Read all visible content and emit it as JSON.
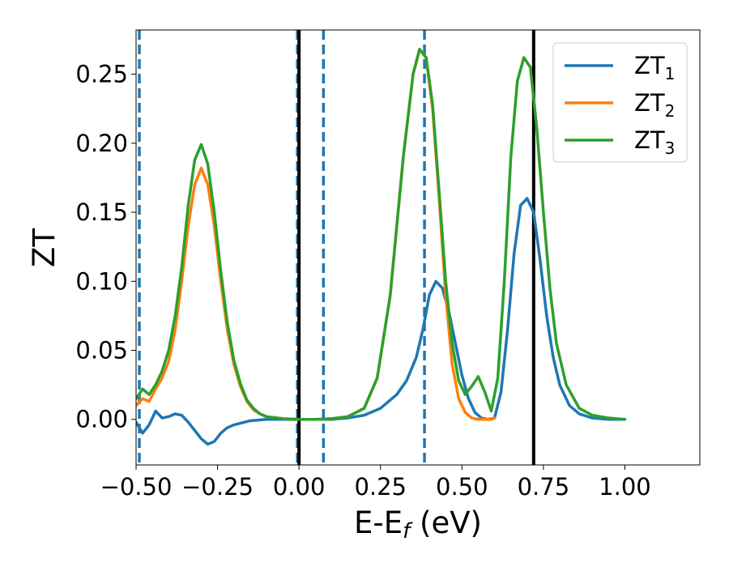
{
  "chart_data": {
    "type": "line",
    "xlabel": "E-E_f (eV)",
    "ylabel": "ZT",
    "xlim": [
      -0.5,
      1.23
    ],
    "ylim": [
      -0.033,
      0.282
    ],
    "xticks": [
      "−0.50",
      "−0.25",
      "0.00",
      "0.25",
      "0.50",
      "0.75",
      "1.00"
    ],
    "xtick_values": [
      -0.5,
      -0.25,
      0.0,
      0.25,
      0.5,
      0.75,
      1.0
    ],
    "yticks": [
      "0.00",
      "0.05",
      "0.10",
      "0.15",
      "0.20",
      "0.25"
    ],
    "ytick_values": [
      0.0,
      0.05,
      0.1,
      0.15,
      0.2,
      0.25
    ],
    "grid": false,
    "legend_position": "top-right",
    "series": [
      {
        "name": "ZT_1",
        "label_main": "ZT",
        "label_sub": "1",
        "color": "#1f77b4",
        "x": [
          -0.5,
          -0.48,
          -0.46,
          -0.44,
          -0.42,
          -0.4,
          -0.38,
          -0.36,
          -0.34,
          -0.32,
          -0.3,
          -0.28,
          -0.26,
          -0.24,
          -0.22,
          -0.2,
          -0.15,
          -0.1,
          -0.05,
          0.0,
          0.05,
          0.1,
          0.15,
          0.2,
          0.25,
          0.3,
          0.33,
          0.36,
          0.38,
          0.4,
          0.42,
          0.44,
          0.46,
          0.48,
          0.5,
          0.52,
          0.54,
          0.56,
          0.58,
          0.6,
          0.62,
          0.64,
          0.66,
          0.68,
          0.7,
          0.72,
          0.74,
          0.76,
          0.78,
          0.8,
          0.83,
          0.86,
          0.9,
          0.95,
          1.0
        ],
        "y": [
          -0.002,
          -0.01,
          -0.004,
          0.006,
          0.001,
          0.002,
          0.004,
          0.003,
          -0.002,
          -0.008,
          -0.014,
          -0.018,
          -0.016,
          -0.01,
          -0.006,
          -0.004,
          -0.001,
          0.0,
          0.0,
          0.0,
          0.0,
          0.0,
          0.001,
          0.003,
          0.008,
          0.018,
          0.028,
          0.045,
          0.065,
          0.09,
          0.1,
          0.095,
          0.078,
          0.055,
          0.032,
          0.015,
          0.005,
          0.001,
          0.0,
          0.001,
          0.02,
          0.065,
          0.12,
          0.155,
          0.16,
          0.15,
          0.115,
          0.075,
          0.045,
          0.025,
          0.01,
          0.004,
          0.001,
          0.0,
          0.0
        ]
      },
      {
        "name": "ZT_2",
        "label_main": "ZT",
        "label_sub": "2",
        "color": "#ff7f0e",
        "x": [
          -0.5,
          -0.48,
          -0.46,
          -0.44,
          -0.42,
          -0.4,
          -0.38,
          -0.36,
          -0.34,
          -0.32,
          -0.3,
          -0.28,
          -0.26,
          -0.24,
          -0.22,
          -0.2,
          -0.18,
          -0.16,
          -0.14,
          -0.12,
          -0.1,
          -0.05,
          0.0,
          0.05,
          0.1,
          0.15,
          0.2,
          0.24,
          0.28,
          0.32,
          0.35,
          0.37,
          0.39,
          0.41,
          0.43,
          0.45,
          0.47,
          0.49,
          0.51,
          0.53,
          0.55,
          0.57,
          0.59,
          0.6
        ],
        "y": [
          0.01,
          0.015,
          0.013,
          0.022,
          0.03,
          0.042,
          0.065,
          0.1,
          0.14,
          0.17,
          0.182,
          0.17,
          0.14,
          0.1,
          0.065,
          0.04,
          0.024,
          0.013,
          0.007,
          0.004,
          0.002,
          0.0005,
          0.0,
          0.0,
          0.0005,
          0.002,
          0.008,
          0.03,
          0.09,
          0.19,
          0.25,
          0.268,
          0.262,
          0.225,
          0.16,
          0.09,
          0.04,
          0.015,
          0.005,
          0.001,
          0.0,
          0.0,
          0.0,
          0.001
        ]
      },
      {
        "name": "ZT_3",
        "label_main": "ZT",
        "label_sub": "3",
        "color": "#2ca02c",
        "x": [
          -0.5,
          -0.48,
          -0.46,
          -0.44,
          -0.42,
          -0.4,
          -0.38,
          -0.36,
          -0.34,
          -0.32,
          -0.3,
          -0.28,
          -0.26,
          -0.24,
          -0.22,
          -0.2,
          -0.18,
          -0.16,
          -0.14,
          -0.12,
          -0.1,
          -0.05,
          0.0,
          0.05,
          0.1,
          0.15,
          0.2,
          0.24,
          0.28,
          0.32,
          0.35,
          0.37,
          0.39,
          0.41,
          0.43,
          0.45,
          0.47,
          0.49,
          0.51,
          0.53,
          0.55,
          0.57,
          0.59,
          0.61,
          0.63,
          0.65,
          0.67,
          0.69,
          0.71,
          0.73,
          0.75,
          0.77,
          0.79,
          0.82,
          0.86,
          0.9,
          0.95,
          1.0
        ],
        "y": [
          0.015,
          0.022,
          0.018,
          0.025,
          0.035,
          0.05,
          0.075,
          0.11,
          0.155,
          0.188,
          0.199,
          0.185,
          0.15,
          0.107,
          0.07,
          0.043,
          0.026,
          0.014,
          0.008,
          0.004,
          0.002,
          0.0005,
          0.0,
          0.0,
          0.0005,
          0.002,
          0.008,
          0.03,
          0.09,
          0.19,
          0.25,
          0.268,
          0.262,
          0.228,
          0.165,
          0.1,
          0.055,
          0.028,
          0.018,
          0.024,
          0.031,
          0.02,
          0.006,
          0.03,
          0.1,
          0.19,
          0.245,
          0.262,
          0.255,
          0.21,
          0.15,
          0.095,
          0.055,
          0.025,
          0.008,
          0.003,
          0.001,
          0.0
        ]
      }
    ],
    "vertical_lines": [
      {
        "x": -0.49,
        "style": "dashed",
        "color": "#1f77b4"
      },
      {
        "x": -0.005,
        "style": "dashed",
        "color": "#1f77b4"
      },
      {
        "x": 0.0,
        "style": "solid",
        "color": "#000000"
      },
      {
        "x": 0.075,
        "style": "dashed",
        "color": "#1f77b4"
      },
      {
        "x": 0.385,
        "style": "dashed",
        "color": "#1f77b4"
      },
      {
        "x": 0.72,
        "style": "solid",
        "color": "#000000"
      }
    ]
  }
}
